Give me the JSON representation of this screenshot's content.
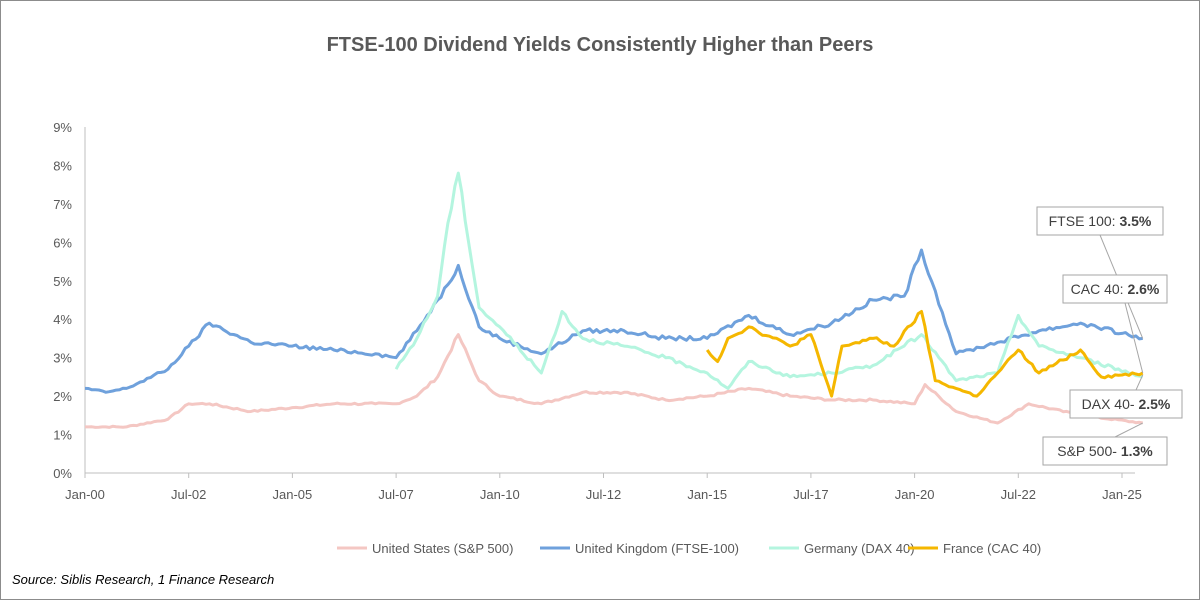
{
  "chart_data": {
    "type": "line",
    "title": "FTSE-100 Dividend Yields Consistently Higher than Peers",
    "source": "Source: Siblis Research, 1 Finance Research",
    "y_ticks": [
      "0%",
      "1%",
      "2%",
      "3%",
      "4%",
      "5%",
      "6%",
      "7%",
      "8%",
      "9%"
    ],
    "ylim": [
      0,
      9
    ],
    "x_ticks": [
      "Jan-00",
      "Jul-02",
      "Jan-05",
      "Jul-07",
      "Jan-10",
      "Jul-12",
      "Jan-15",
      "Jul-17",
      "Jan-20",
      "Jul-22",
      "Jan-25"
    ],
    "xlim": [
      "Jan-00",
      "Jan-26"
    ],
    "grid": false,
    "legend_position": "bottom",
    "series": [
      {
        "name": "United States (S&P 500)",
        "color": "#f4c7c3",
        "points": [
          [
            "Jan-00",
            1.2
          ],
          [
            "Jan-01",
            1.2
          ],
          [
            "Jan-02",
            1.4
          ],
          [
            "Jul-02",
            1.8
          ],
          [
            "Jan-03",
            1.8
          ],
          [
            "Jan-04",
            1.6
          ],
          [
            "Jan-05",
            1.7
          ],
          [
            "Jan-06",
            1.8
          ],
          [
            "Jan-07",
            1.8
          ],
          [
            "Jul-07",
            1.8
          ],
          [
            "Jan-08",
            2.0
          ],
          [
            "Jul-08",
            2.5
          ],
          [
            "Jan-09",
            3.6
          ],
          [
            "Jul-09",
            2.4
          ],
          [
            "Jan-10",
            2.0
          ],
          [
            "Jan-11",
            1.8
          ],
          [
            "Jan-12",
            2.1
          ],
          [
            "Jan-13",
            2.1
          ],
          [
            "Jan-14",
            1.9
          ],
          [
            "Jan-15",
            2.0
          ],
          [
            "Jan-16",
            2.2
          ],
          [
            "Jan-17",
            2.0
          ],
          [
            "Jan-18",
            1.9
          ],
          [
            "Jan-19",
            1.9
          ],
          [
            "Jan-20",
            1.8
          ],
          [
            "Apr-20",
            2.3
          ],
          [
            "Jan-21",
            1.6
          ],
          [
            "Jan-22",
            1.3
          ],
          [
            "Oct-22",
            1.8
          ],
          [
            "Jan-24",
            1.5
          ],
          [
            "Jul-25",
            1.3
          ]
        ]
      },
      {
        "name": "United Kingdom (FTSE-100)",
        "color": "#6fa1dc",
        "points": [
          [
            "Jan-00",
            2.2
          ],
          [
            "Jul-00",
            2.1
          ],
          [
            "Jan-01",
            2.2
          ],
          [
            "Jan-02",
            2.7
          ],
          [
            "Jul-02",
            3.3
          ],
          [
            "Jan-03",
            3.9
          ],
          [
            "Jan-04",
            3.4
          ],
          [
            "Jan-05",
            3.3
          ],
          [
            "Jan-06",
            3.2
          ],
          [
            "Jan-07",
            3.1
          ],
          [
            "Jul-07",
            3.0
          ],
          [
            "Jan-08",
            3.7
          ],
          [
            "Jul-08",
            4.5
          ],
          [
            "Oct-08",
            4.9
          ],
          [
            "Jan-09",
            5.4
          ],
          [
            "Jul-09",
            3.8
          ],
          [
            "Jan-10",
            3.5
          ],
          [
            "Jan-11",
            3.1
          ],
          [
            "Jan-12",
            3.7
          ],
          [
            "Jan-13",
            3.7
          ],
          [
            "Jan-14",
            3.5
          ],
          [
            "Jan-15",
            3.5
          ],
          [
            "Jan-16",
            4.1
          ],
          [
            "Jan-17",
            3.6
          ],
          [
            "Jan-18",
            3.9
          ],
          [
            "Jan-19",
            4.5
          ],
          [
            "Oct-19",
            4.6
          ],
          [
            "Mar-20",
            5.8
          ],
          [
            "Jan-21",
            3.1
          ],
          [
            "Jan-22",
            3.4
          ],
          [
            "Jan-23",
            3.7
          ],
          [
            "Jan-24",
            3.9
          ],
          [
            "Jul-25",
            3.5
          ]
        ]
      },
      {
        "name": "Germany (DAX 40)",
        "color": "#b4f5df",
        "points": [
          [
            "Jul-07",
            2.7
          ],
          [
            "Jan-08",
            3.5
          ],
          [
            "Jul-08",
            4.6
          ],
          [
            "Oct-08",
            6.5
          ],
          [
            "Jan-09",
            7.8
          ],
          [
            "Jul-09",
            4.3
          ],
          [
            "Jan-10",
            3.8
          ],
          [
            "Jan-11",
            2.6
          ],
          [
            "Jul-11",
            4.2
          ],
          [
            "Jan-12",
            3.5
          ],
          [
            "Jan-13",
            3.3
          ],
          [
            "Jan-14",
            3.0
          ],
          [
            "Jan-15",
            2.6
          ],
          [
            "Jul-15",
            2.2
          ],
          [
            "Jan-16",
            2.9
          ],
          [
            "Jan-17",
            2.5
          ],
          [
            "Jan-18",
            2.6
          ],
          [
            "Jan-19",
            2.8
          ],
          [
            "Mar-20",
            3.6
          ],
          [
            "Jan-21",
            2.4
          ],
          [
            "Jan-22",
            2.6
          ],
          [
            "Jul-22",
            4.1
          ],
          [
            "Jan-23",
            3.3
          ],
          [
            "Jan-24",
            3.0
          ],
          [
            "Jul-25",
            2.5
          ]
        ]
      },
      {
        "name": "France (CAC 40)",
        "color": "#f5b700",
        "points": [
          [
            "Jan-15",
            3.2
          ],
          [
            "Apr-15",
            2.9
          ],
          [
            "Jul-15",
            3.5
          ],
          [
            "Jan-16",
            3.8
          ],
          [
            "Jan-17",
            3.3
          ],
          [
            "Jul-17",
            3.6
          ],
          [
            "Jan-18",
            2.0
          ],
          [
            "Apr-18",
            3.3
          ],
          [
            "Jan-19",
            3.5
          ],
          [
            "Jul-19",
            3.3
          ],
          [
            "Mar-20",
            4.2
          ],
          [
            "Jul-20",
            2.4
          ],
          [
            "Jan-21",
            2.2
          ],
          [
            "Jul-21",
            2.0
          ],
          [
            "Jan-22",
            2.6
          ],
          [
            "Jul-22",
            3.2
          ],
          [
            "Jan-23",
            2.6
          ],
          [
            "Jan-24",
            3.2
          ],
          [
            "Jul-24",
            2.5
          ],
          [
            "Jul-25",
            2.6
          ]
        ]
      }
    ],
    "annotations": [
      {
        "label": "FTSE 100: ",
        "value": "3.5%"
      },
      {
        "label": "CAC 40: ",
        "value": "2.6%"
      },
      {
        "label": "DAX 40- ",
        "value": "2.5%"
      },
      {
        "label": "S&P 500- ",
        "value": "1.3%"
      }
    ]
  }
}
